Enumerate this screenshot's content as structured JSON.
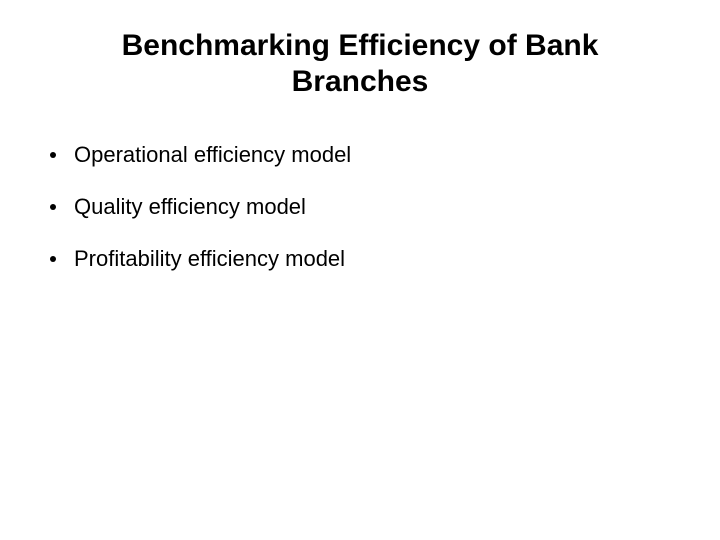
{
  "slide": {
    "title": "Benchmarking Efficiency of Bank Branches",
    "title_fontsize": 30,
    "title_fontweight": "bold",
    "title_color": "#000000",
    "background_color": "#ffffff",
    "bullets": [
      {
        "text": "Operational efficiency model"
      },
      {
        "text": "Quality efficiency model"
      },
      {
        "text": "Profitability efficiency model"
      }
    ],
    "bullet_fontsize": 22,
    "bullet_color": "#000000",
    "bullet_marker_color": "#000000"
  }
}
